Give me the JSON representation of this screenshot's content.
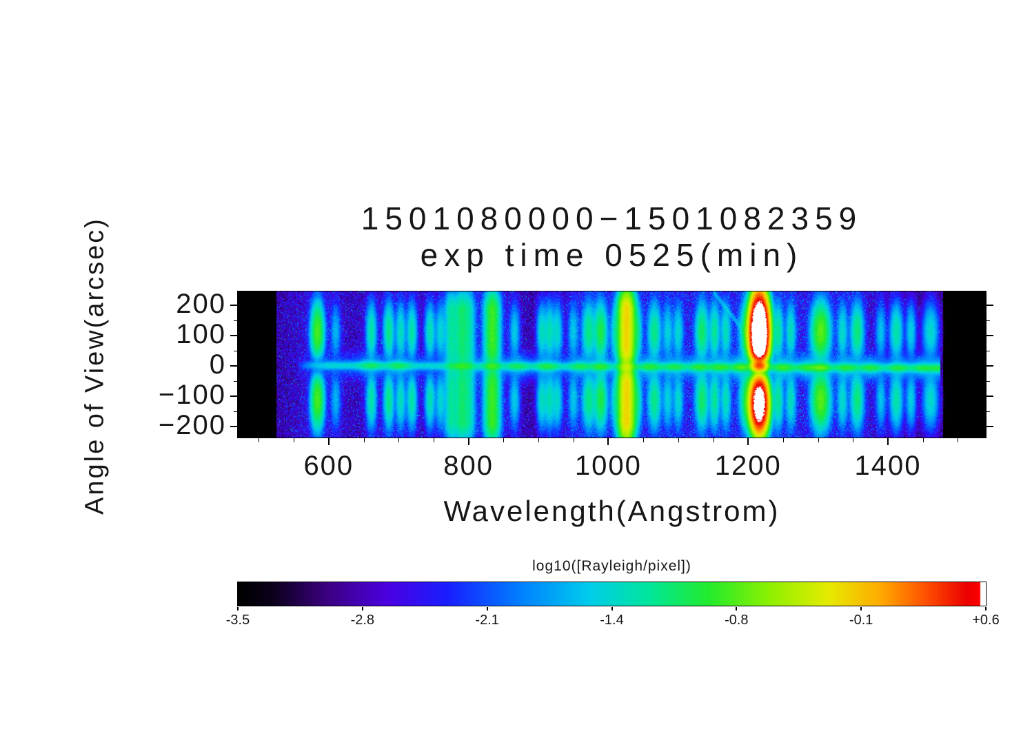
{
  "title": {
    "line1": "1501080000−1501082359",
    "line2": "exp time 0525(min)"
  },
  "axes": {
    "x": {
      "label": "Wavelength(Angstrom)",
      "ticks": [
        600,
        800,
        1000,
        1200,
        1400
      ],
      "tick_labels": [
        "600",
        "800",
        "1000",
        "1200",
        "1400"
      ],
      "minor_start": 500,
      "minor_end": 1500,
      "minor_step": 50
    },
    "y": {
      "label": "Angle of View(arcsec)",
      "ticks": [
        200,
        100,
        0,
        -100,
        -200
      ],
      "tick_labels": [
        "200",
        "100",
        "0",
        "−100",
        "−200"
      ],
      "minor_ticks": [
        150,
        50,
        -50,
        -150
      ]
    }
  },
  "colorbar": {
    "label": "log10([Rayleigh/pixel])",
    "tick_labels": [
      "-3.5",
      "-2.8",
      "-2.1",
      "-1.4",
      "-0.8",
      "-0.1",
      "+0.6"
    ],
    "range": [
      -3.5,
      0.6
    ]
  },
  "chart_data": {
    "type": "heatmap",
    "title": "1501080000−1501082359 exp time 0525(min)",
    "xlabel": "Wavelength(Angstrom)",
    "ylabel": "Angle of View(arcsec)",
    "value_label": "log10([Rayleigh/pixel])",
    "xlim": [
      470,
      1540
    ],
    "ylim": [
      -236,
      246
    ],
    "value_range": [
      -3.5,
      0.6
    ],
    "data_wavelength_range": [
      525,
      1479
    ],
    "background_log10": -3.0,
    "colormap": [
      [
        0.0,
        0,
        0,
        0
      ],
      [
        0.045,
        10,
        0,
        25
      ],
      [
        0.12,
        60,
        0,
        130
      ],
      [
        0.2,
        75,
        0,
        225
      ],
      [
        0.28,
        25,
        30,
        255
      ],
      [
        0.38,
        0,
        130,
        255
      ],
      [
        0.47,
        0,
        205,
        235
      ],
      [
        0.55,
        0,
        230,
        155
      ],
      [
        0.63,
        35,
        235,
        45
      ],
      [
        0.71,
        140,
        240,
        0
      ],
      [
        0.79,
        230,
        235,
        0
      ],
      [
        0.86,
        255,
        170,
        0
      ],
      [
        0.92,
        255,
        80,
        0
      ],
      [
        0.975,
        235,
        0,
        0
      ],
      [
        0.993,
        255,
        0,
        0
      ],
      [
        0.9935,
        255,
        255,
        255
      ],
      [
        1.0,
        255,
        255,
        255
      ]
    ],
    "emission_lines": [
      {
        "wavelength": 584,
        "peak_log10": -0.8,
        "sigma": 5,
        "profile": "lobes",
        "center_gap": 0.12
      },
      {
        "wavelength": 610,
        "peak_log10": -1.75,
        "sigma": 4,
        "profile": "lobes",
        "center_gap": 0.2
      },
      {
        "wavelength": 661,
        "peak_log10": -1.3,
        "sigma": 4,
        "profile": "lobes",
        "center_gap": 0.2
      },
      {
        "wavelength": 686,
        "peak_log10": -1.2,
        "sigma": 4,
        "profile": "lobes",
        "center_gap": 0.2
      },
      {
        "wavelength": 703,
        "peak_log10": -1.4,
        "sigma": 4,
        "profile": "lobes",
        "center_gap": 0.2
      },
      {
        "wavelength": 719,
        "peak_log10": -1.3,
        "sigma": 4,
        "profile": "lobes",
        "center_gap": 0.25
      },
      {
        "wavelength": 745,
        "peak_log10": -1.35,
        "sigma": 4,
        "profile": "lobes",
        "center_gap": 0.25
      },
      {
        "wavelength": 760,
        "peak_log10": -1.5,
        "sigma": 4,
        "profile": "lobes",
        "center_gap": 0.3
      },
      {
        "wavelength": 775,
        "peak_log10": -1.3,
        "sigma": 5,
        "profile": "full",
        "center_gap": 0.5
      },
      {
        "wavelength": 790,
        "peak_log10": -1.15,
        "sigma": 6,
        "profile": "full",
        "center_gap": 0.5
      },
      {
        "wavelength": 801,
        "peak_log10": -1.45,
        "sigma": 5,
        "profile": "full",
        "center_gap": 0.6
      },
      {
        "wavelength": 834,
        "peak_log10": -0.85,
        "sigma": 6,
        "profile": "full",
        "center_gap": 0.25
      },
      {
        "wavelength": 866,
        "peak_log10": -1.6,
        "sigma": 4,
        "profile": "lobes",
        "center_gap": 0.3
      },
      {
        "wavelength": 905,
        "peak_log10": -1.4,
        "sigma": 4,
        "profile": "lobes",
        "center_gap": 0.3
      },
      {
        "wavelength": 916,
        "peak_log10": -1.35,
        "sigma": 4,
        "profile": "lobes",
        "center_gap": 0.3
      },
      {
        "wavelength": 927,
        "peak_log10": -1.45,
        "sigma": 4,
        "profile": "lobes",
        "center_gap": 0.3
      },
      {
        "wavelength": 950,
        "peak_log10": -1.65,
        "sigma": 4,
        "profile": "lobes",
        "center_gap": 0.3
      },
      {
        "wavelength": 972,
        "peak_log10": -1.2,
        "sigma": 5,
        "profile": "lobes",
        "center_gap": 0.25
      },
      {
        "wavelength": 989,
        "peak_log10": -1.0,
        "sigma": 5,
        "profile": "lobes",
        "center_gap": 0.25
      },
      {
        "wavelength": 1010,
        "peak_log10": -1.5,
        "sigma": 4,
        "profile": "lobes",
        "center_gap": 0.3
      },
      {
        "wavelength": 1026,
        "peak_log10": -0.15,
        "sigma": 6,
        "profile": "full",
        "center_gap": 0.3
      },
      {
        "wavelength": 1041,
        "peak_log10": -1.3,
        "sigma": 4,
        "profile": "lobes",
        "center_gap": 0.3
      },
      {
        "wavelength": 1066,
        "peak_log10": -1.2,
        "sigma": 5,
        "profile": "lobes",
        "center_gap": 0.3
      },
      {
        "wavelength": 1085,
        "peak_log10": -1.55,
        "sigma": 4,
        "profile": "lobes",
        "center_gap": 0.3
      },
      {
        "wavelength": 1100,
        "peak_log10": -1.5,
        "sigma": 4,
        "profile": "lobes",
        "center_gap": 0.3
      },
      {
        "wavelength": 1134,
        "peak_log10": -1.1,
        "sigma": 5,
        "profile": "lobes",
        "center_gap": 0.25
      },
      {
        "wavelength": 1152,
        "peak_log10": -1.25,
        "sigma": 4,
        "profile": "lobes",
        "center_gap": 0.3
      },
      {
        "wavelength": 1168,
        "peak_log10": -1.4,
        "sigma": 4,
        "profile": "lobes",
        "center_gap": 0.3
      },
      {
        "wavelength": 1200,
        "peak_log10": -0.9,
        "sigma": 6,
        "profile": "lobes",
        "center_gap": 0.3
      },
      {
        "wavelength": 1216,
        "peak_log10": 1.3,
        "sigma": 6,
        "profile": "lya"
      },
      {
        "wavelength": 1243,
        "peak_log10": -1.25,
        "sigma": 4,
        "profile": "lobes",
        "center_gap": 0.3
      },
      {
        "wavelength": 1261,
        "peak_log10": -1.4,
        "sigma": 4,
        "profile": "lobes",
        "center_gap": 0.3
      },
      {
        "wavelength": 1304,
        "peak_log10": -0.75,
        "sigma": 7,
        "profile": "lobes",
        "center_gap": 0.2
      },
      {
        "wavelength": 1335,
        "peak_log10": -1.45,
        "sigma": 4,
        "profile": "lobes",
        "center_gap": 0.3
      },
      {
        "wavelength": 1356,
        "peak_log10": -1.15,
        "sigma": 5,
        "profile": "lobes",
        "center_gap": 0.3
      },
      {
        "wavelength": 1390,
        "peak_log10": -1.65,
        "sigma": 4,
        "profile": "lobes",
        "center_gap": 0.3
      },
      {
        "wavelength": 1412,
        "peak_log10": -1.3,
        "sigma": 5,
        "profile": "lobes",
        "center_gap": 0.3
      },
      {
        "wavelength": 1433,
        "peak_log10": -1.55,
        "sigma": 4,
        "profile": "lobes",
        "center_gap": 0.35
      },
      {
        "wavelength": 1461,
        "peak_log10": -1.45,
        "sigma": 6,
        "profile": "lobes",
        "center_gap": 0.4
      }
    ],
    "center_line": {
      "base_log10": -1.6,
      "sigma_arcsec": 7.5,
      "tilt_arcsec": [
        2,
        -7
      ],
      "blobs": [
        [
          660,
          -1.35,
          10
        ],
        [
          700,
          -1.3,
          10
        ],
        [
          790,
          -1.25,
          12
        ],
        [
          834,
          -1.15,
          8
        ],
        [
          870,
          -1.3,
          10
        ],
        [
          912,
          -1.2,
          10
        ],
        [
          960,
          -1.3,
          10
        ],
        [
          989,
          -1.1,
          8
        ],
        [
          1026,
          -0.75,
          7
        ],
        [
          1060,
          -1.15,
          10
        ],
        [
          1095,
          -1.25,
          10
        ],
        [
          1130,
          -1.15,
          9
        ],
        [
          1160,
          -1.1,
          10
        ],
        [
          1190,
          -0.95,
          8
        ],
        [
          1250,
          -1.05,
          10
        ],
        [
          1285,
          -1.1,
          10
        ],
        [
          1305,
          -0.9,
          8
        ],
        [
          1340,
          -1.15,
          10
        ],
        [
          1375,
          -1.2,
          10
        ],
        [
          1415,
          -1.2,
          10
        ],
        [
          1450,
          -1.2,
          10
        ],
        [
          1472,
          -1.25,
          8
        ]
      ]
    },
    "streak": {
      "wl_start": 1150,
      "a_start": 245,
      "wl_end": 1213,
      "a_end": 55,
      "peak_log10": -1.9,
      "sigma_arcsec": 7
    }
  }
}
